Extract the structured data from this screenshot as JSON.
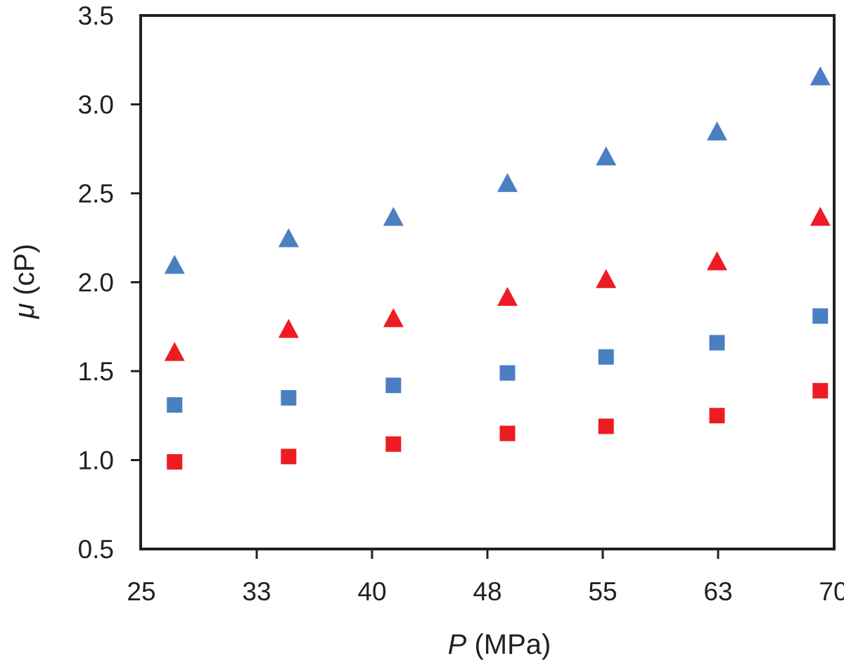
{
  "chart_data": {
    "type": "scatter",
    "title": "",
    "xlabel": {
      "symbol": "P",
      "unit": " (MPa)"
    },
    "ylabel": {
      "symbol": "μ",
      "unit": " (cP)"
    },
    "x_ticks": [
      "25",
      "33",
      "40",
      "48",
      "55",
      "63",
      "70"
    ],
    "y_ticks": [
      "0.5",
      "1.0",
      "1.5",
      "2.0",
      "2.5",
      "3.0",
      "3.5"
    ],
    "xlim": [
      25,
      70
    ],
    "ylim": [
      0.5,
      3.5
    ],
    "grid": false,
    "legend": "none",
    "series": [
      {
        "marker": "triangle",
        "color": "#4a7fc1",
        "points": [
          [
            27.2,
            2.09
          ],
          [
            34.6,
            2.24
          ],
          [
            41.4,
            2.36
          ],
          [
            48.8,
            2.55
          ],
          [
            55.2,
            2.7
          ],
          [
            62.4,
            2.84
          ],
          [
            69.1,
            3.15
          ]
        ]
      },
      {
        "marker": "triangle",
        "color": "#ed1c24",
        "points": [
          [
            27.2,
            1.6
          ],
          [
            34.6,
            1.73
          ],
          [
            41.4,
            1.79
          ],
          [
            48.8,
            1.91
          ],
          [
            55.2,
            2.01
          ],
          [
            62.4,
            2.11
          ],
          [
            69.1,
            2.36
          ]
        ]
      },
      {
        "marker": "square",
        "color": "#4a7fc1",
        "points": [
          [
            27.2,
            1.31
          ],
          [
            34.6,
            1.35
          ],
          [
            41.4,
            1.42
          ],
          [
            48.8,
            1.49
          ],
          [
            55.2,
            1.58
          ],
          [
            62.4,
            1.66
          ],
          [
            69.1,
            1.81
          ]
        ]
      },
      {
        "marker": "square",
        "color": "#ed1c24",
        "points": [
          [
            27.2,
            0.99
          ],
          [
            34.6,
            1.02
          ],
          [
            41.4,
            1.09
          ],
          [
            48.8,
            1.15
          ],
          [
            55.2,
            1.19
          ],
          [
            62.4,
            1.25
          ],
          [
            69.1,
            1.39
          ]
        ]
      }
    ]
  }
}
